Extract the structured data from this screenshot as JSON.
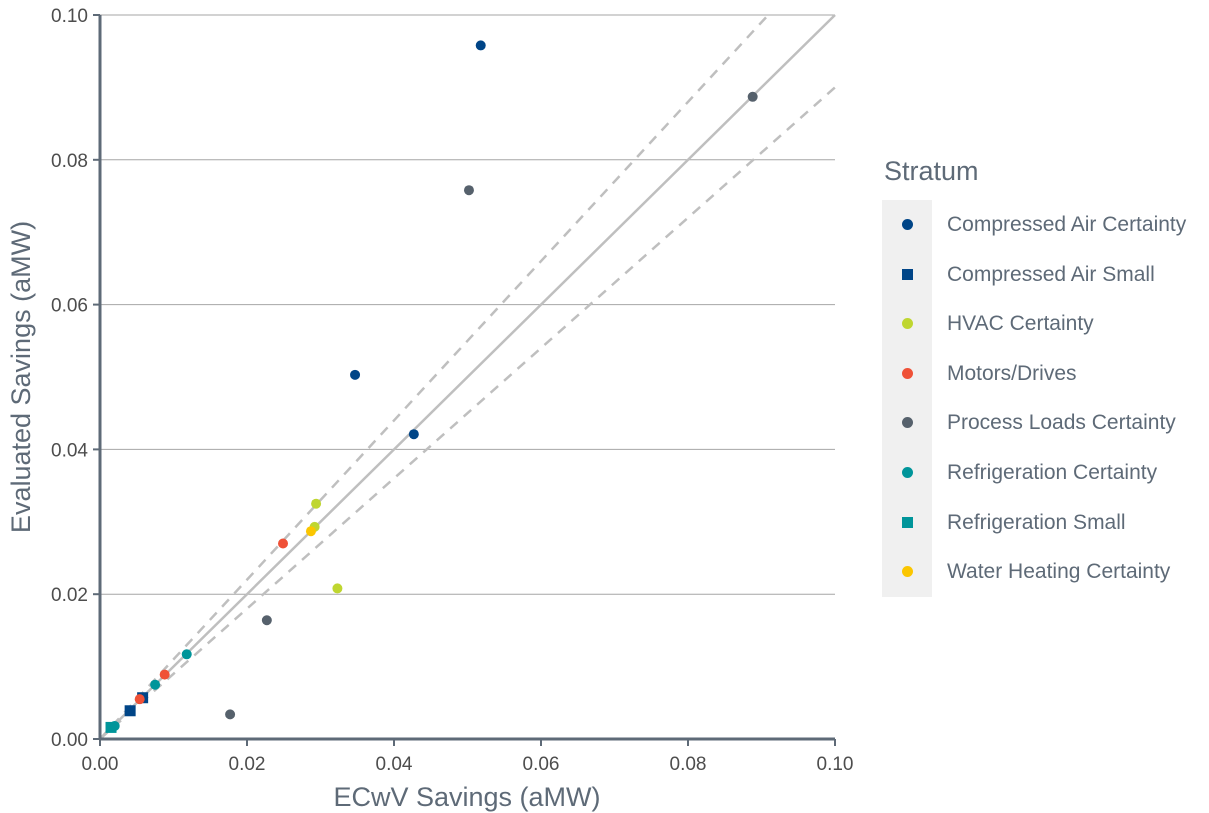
{
  "chart_data": {
    "type": "scatter",
    "xlabel": "ECwV Savings (aMW)",
    "ylabel": "Evaluated Savings (aMW)",
    "xlim": [
      0,
      0.1
    ],
    "ylim": [
      0,
      0.1
    ],
    "x_ticks": [
      "0.00",
      "0.02",
      "0.04",
      "0.06",
      "0.08",
      "0.10"
    ],
    "y_ticks": [
      "0.00",
      "0.02",
      "0.04",
      "0.06",
      "0.08",
      "0.10"
    ],
    "x_tick_values": [
      0,
      0.02,
      0.04,
      0.06,
      0.08,
      0.1
    ],
    "y_tick_values": [
      0,
      0.02,
      0.04,
      0.06,
      0.08,
      0.1
    ],
    "grid": "horizontal",
    "reference_lines": [
      {
        "slope": 1.0,
        "style": "solid",
        "color": "#bfbfbf"
      },
      {
        "slope": 1.1,
        "style": "dashed",
        "color": "#bfbfbf"
      },
      {
        "slope": 0.9,
        "style": "dashed",
        "color": "#bfbfbf"
      }
    ],
    "legend": {
      "title": "Stratum",
      "position": "right"
    },
    "series": [
      {
        "name": "Compressed Air Certainty",
        "marker": "circle",
        "color": "#004587",
        "points": [
          [
            0.0518,
            0.0958
          ],
          [
            0.0347,
            0.0503
          ],
          [
            0.0427,
            0.0421
          ]
        ]
      },
      {
        "name": "Compressed Air Small",
        "marker": "square",
        "color": "#004587",
        "points": [
          [
            0.0041,
            0.0039
          ],
          [
            0.0058,
            0.0057
          ]
        ]
      },
      {
        "name": "HVAC Certainty",
        "marker": "circle",
        "color": "#bfd630",
        "points": [
          [
            0.0294,
            0.0325
          ],
          [
            0.0292,
            0.0293
          ],
          [
            0.0323,
            0.0208
          ]
        ]
      },
      {
        "name": "Motors/Drives",
        "marker": "circle",
        "color": "#ef5137",
        "points": [
          [
            0.0249,
            0.027
          ],
          [
            0.0088,
            0.0089
          ],
          [
            0.0054,
            0.0055
          ]
        ]
      },
      {
        "name": "Process Loads Certainty",
        "marker": "circle",
        "color": "#56616c",
        "points": [
          [
            0.0888,
            0.0887
          ],
          [
            0.0502,
            0.0758
          ],
          [
            0.0227,
            0.0164
          ],
          [
            0.0177,
            0.0034
          ]
        ]
      },
      {
        "name": "Refrigeration Certainty",
        "marker": "circle",
        "color": "#00959a",
        "points": [
          [
            0.0118,
            0.0117
          ],
          [
            0.0075,
            0.0075
          ],
          [
            0.002,
            0.0018
          ]
        ]
      },
      {
        "name": "Refrigeration Small",
        "marker": "square",
        "color": "#00959a",
        "points": [
          [
            0.0015,
            0.0016
          ]
        ]
      },
      {
        "name": "Water Heating Certainty",
        "marker": "circle",
        "color": "#fbc600",
        "points": [
          [
            0.0287,
            0.0287
          ]
        ]
      }
    ]
  },
  "axis_color": "#5e6a77",
  "grid_color": "#a6a6a6"
}
